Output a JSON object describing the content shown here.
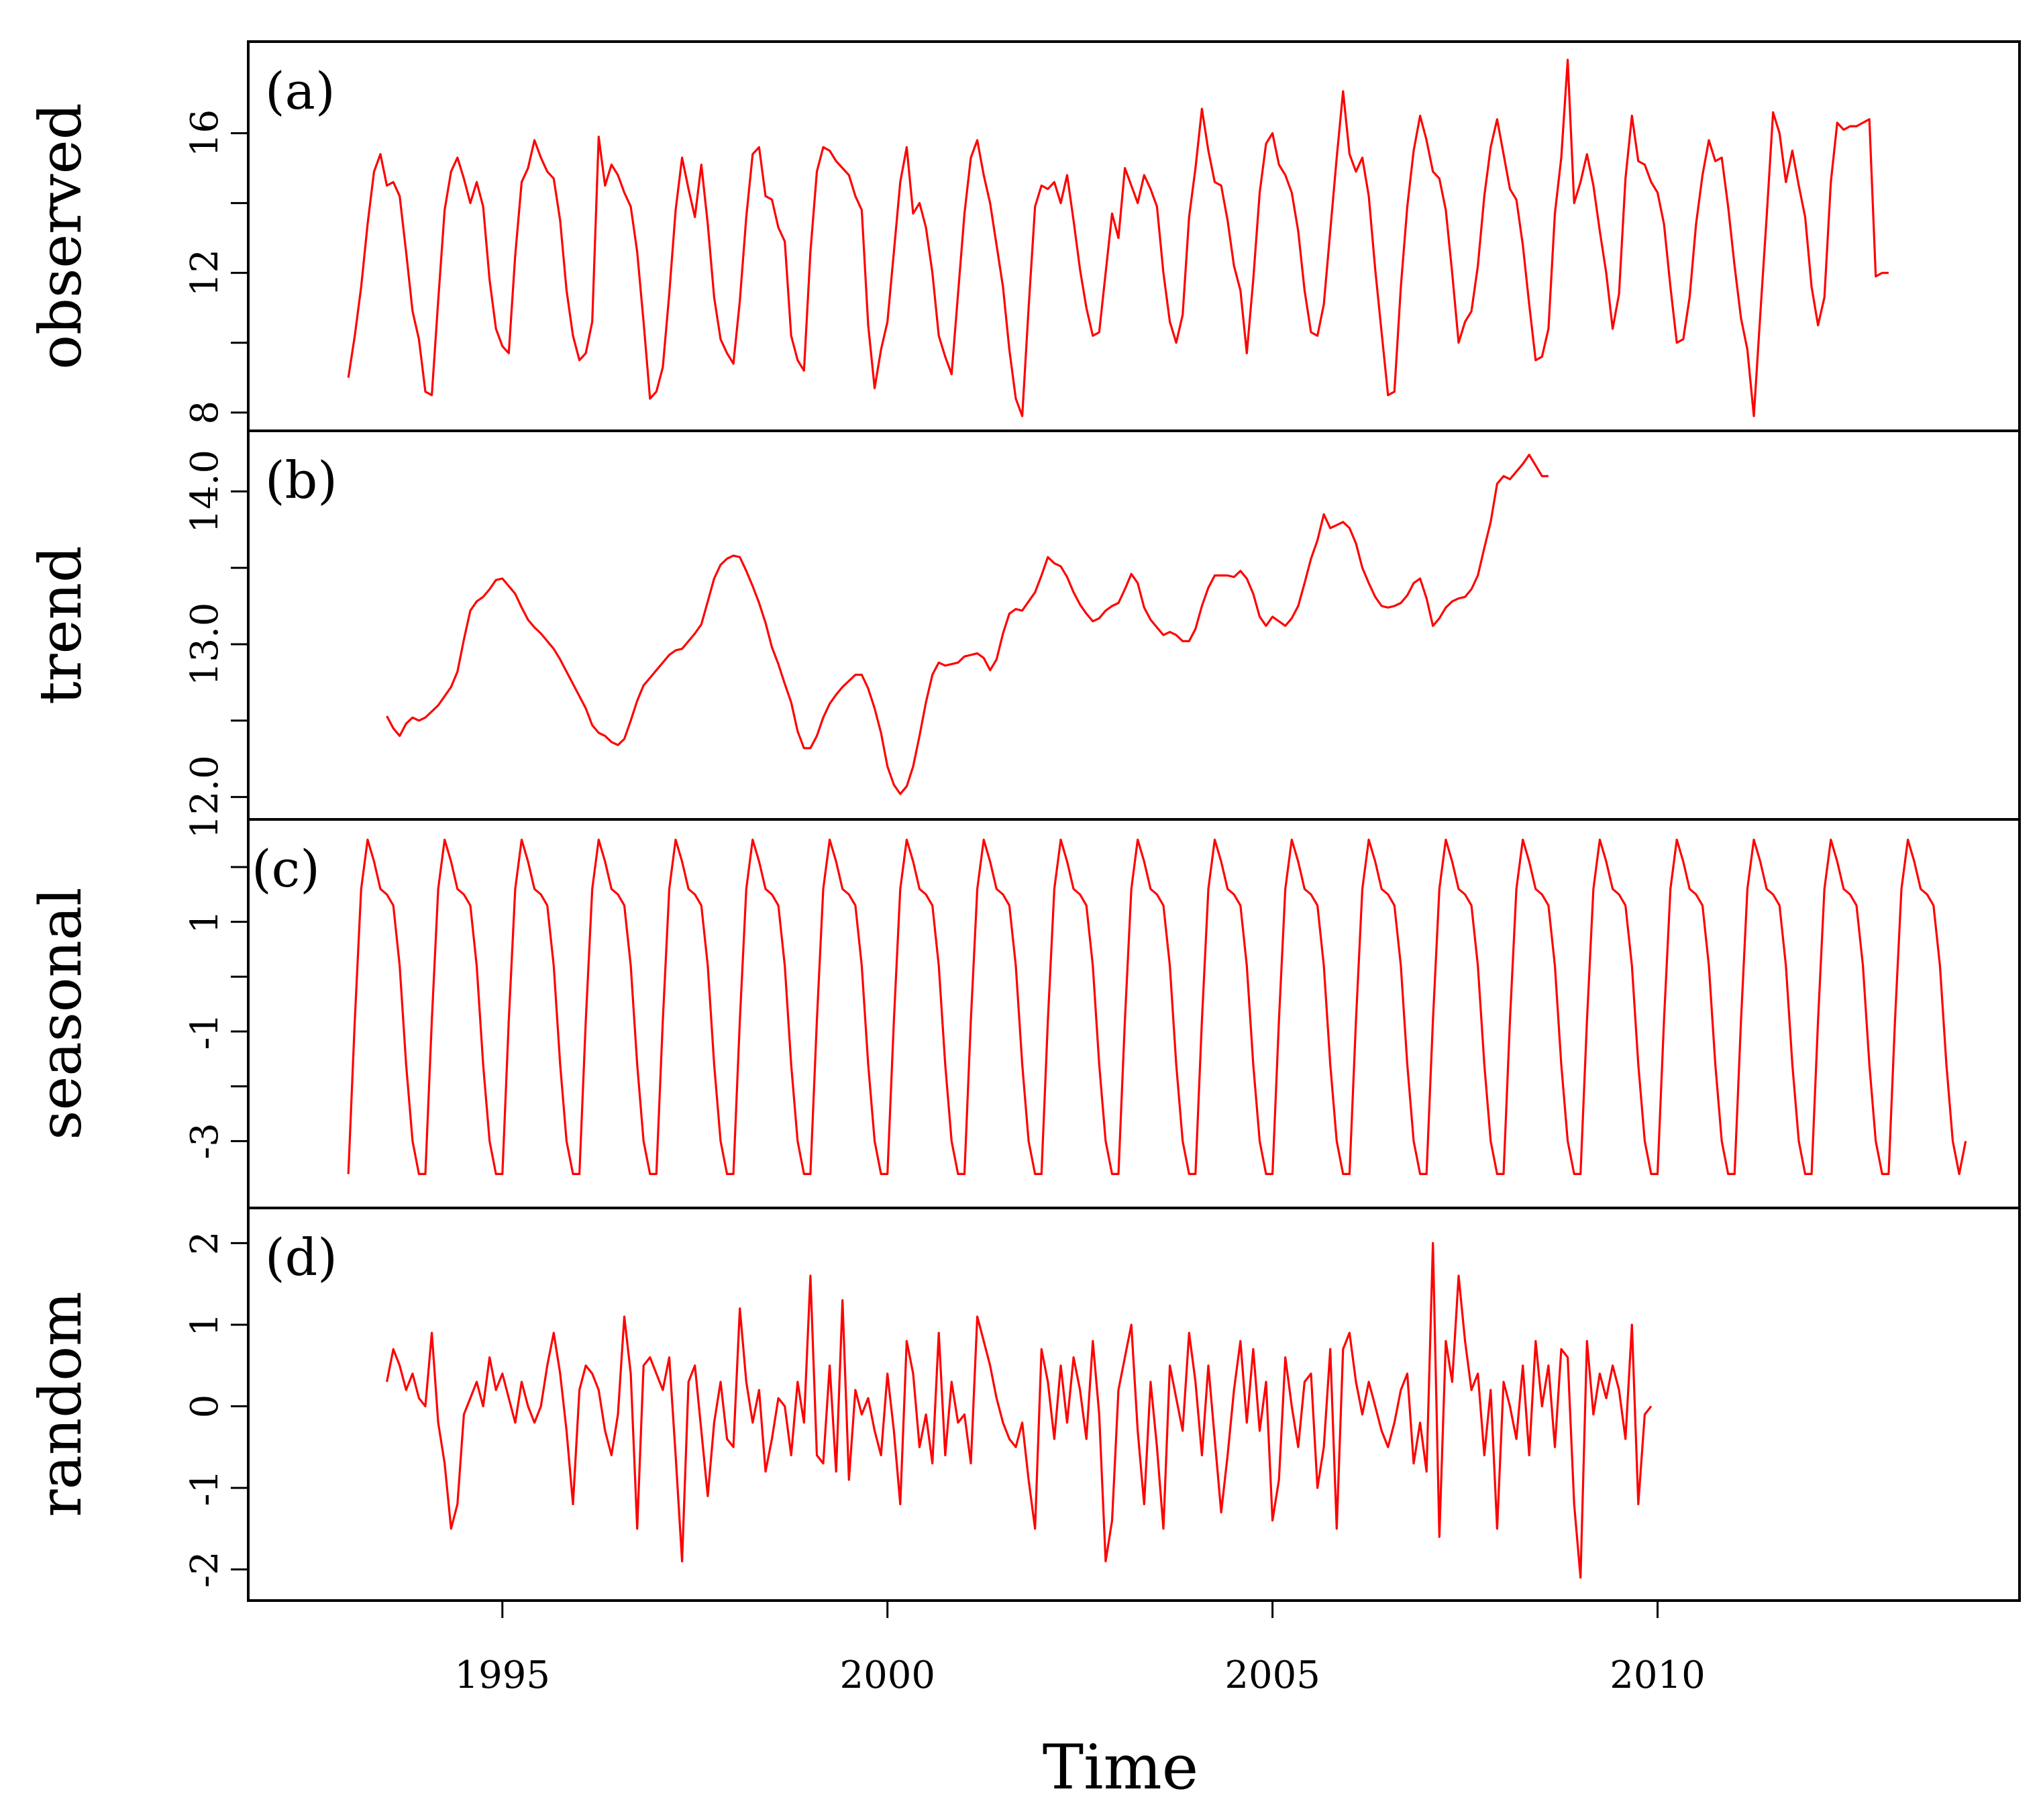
{
  "chart_data": {
    "type": "line",
    "title": "",
    "xlabel": "Time",
    "x_range": [
      1993,
      2014
    ],
    "xlim": [
      1991.7,
      2014.7
    ],
    "x_ticks": [
      1995,
      2000,
      2005,
      2010
    ],
    "x_tick_labels": [
      "1995",
      "2000",
      "2005",
      "2010"
    ],
    "color": "#ff0000",
    "panels": [
      {
        "tag": "(a)",
        "ylabel": "observed",
        "ylim": [
          7.9,
          18.2
        ],
        "y_ticks": [
          8,
          10,
          12,
          14,
          16
        ],
        "y_tick_labels": [
          "8",
          "",
          "12",
          "",
          "16"
        ],
        "start": 1993.0,
        "step": 0.0833333,
        "values": [
          9.0,
          10.2,
          11.6,
          13.4,
          14.9,
          15.4,
          14.5,
          14.6,
          14.2,
          12.6,
          10.9,
          10.1,
          8.6,
          8.5,
          11.2,
          13.8,
          14.9,
          15.3,
          14.7,
          14.0,
          14.6,
          13.9,
          11.8,
          10.4,
          9.9,
          9.7,
          12.5,
          14.6,
          15.0,
          15.8,
          15.3,
          14.9,
          14.7,
          13.5,
          11.5,
          10.2,
          9.5,
          9.7,
          10.6,
          15.9,
          14.5,
          15.1,
          14.8,
          14.3,
          13.9,
          12.6,
          10.6,
          8.4,
          8.6,
          9.3,
          11.4,
          13.8,
          15.3,
          14.4,
          13.6,
          15.1,
          13.4,
          11.3,
          10.1,
          9.7,
          9.4,
          11.2,
          13.6,
          15.4,
          15.6,
          14.2,
          14.1,
          13.3,
          12.9,
          10.2,
          9.5,
          9.2,
          12.6,
          14.9,
          15.6,
          15.5,
          15.2,
          15.0,
          14.8,
          14.2,
          13.8,
          10.5,
          8.7,
          9.8,
          10.6,
          12.6,
          14.6,
          15.6,
          13.7,
          14.0,
          13.3,
          12.0,
          10.2,
          9.6,
          9.1,
          11.4,
          13.7,
          15.3,
          15.8,
          14.8,
          14.0,
          12.8,
          11.6,
          9.8,
          8.4,
          7.9,
          11.0,
          13.9,
          14.5,
          14.4,
          14.6,
          14.0,
          14.8,
          13.5,
          12.1,
          11.0,
          10.2,
          10.3,
          12.0,
          13.7,
          13.0,
          15.0,
          14.5,
          14.0,
          14.8,
          14.4,
          13.9,
          12.0,
          10.6,
          10.0,
          10.8,
          13.6,
          15.0,
          16.7,
          15.5,
          14.6,
          14.5,
          13.5,
          12.2,
          11.5,
          9.7,
          11.8,
          14.3,
          15.7,
          16.0,
          15.1,
          14.8,
          14.3,
          13.2,
          11.5,
          10.3,
          10.2,
          11.1,
          13.2,
          15.3,
          17.2,
          15.4,
          14.9,
          15.3,
          14.2,
          12.1,
          10.3,
          8.5,
          8.6,
          11.6,
          13.9,
          15.5,
          16.5,
          15.8,
          14.9,
          14.7,
          13.8,
          12.0,
          10.0,
          10.6,
          10.9,
          12.2,
          14.2,
          15.6,
          16.4,
          15.4,
          14.4,
          14.1,
          12.8,
          11.1,
          9.5,
          9.6,
          10.4,
          13.7,
          15.3,
          18.1,
          14.0,
          14.6,
          15.4,
          14.5,
          13.2,
          12.0,
          10.4,
          11.4,
          14.7,
          16.5,
          15.2,
          15.1,
          14.6,
          14.3,
          13.4,
          11.6,
          10.0,
          10.1,
          11.3,
          13.4,
          14.8,
          15.8,
          15.2,
          15.3,
          13.9,
          12.2,
          10.7,
          9.8,
          7.9,
          10.8,
          13.6,
          16.6,
          16.0,
          14.6,
          15.5,
          14.5,
          13.6,
          11.6,
          10.5,
          11.3,
          14.6,
          16.3,
          16.1,
          16.2,
          16.2,
          16.3,
          16.4,
          11.9,
          12.0,
          12.0
        ]
      },
      {
        "tag": "(b)",
        "ylabel": "trend",
        "ylim": [
          11.95,
          14.3
        ],
        "y_ticks": [
          12.0,
          12.5,
          13.0,
          13.5,
          14.0
        ],
        "y_tick_labels": [
          "12.0",
          "",
          "13.0",
          "",
          "14.0"
        ],
        "start": 1993.5,
        "step": 0.0833333,
        "values": [
          12.53,
          12.45,
          12.4,
          12.48,
          12.52,
          12.5,
          12.52,
          12.56,
          12.6,
          12.66,
          12.72,
          12.82,
          13.03,
          13.22,
          13.28,
          13.31,
          13.36,
          13.42,
          13.43,
          13.38,
          13.33,
          13.24,
          13.16,
          13.11,
          13.07,
          13.02,
          12.97,
          12.9,
          12.82,
          12.74,
          12.66,
          12.58,
          12.47,
          12.42,
          12.4,
          12.36,
          12.34,
          12.38,
          12.5,
          12.63,
          12.73,
          12.78,
          12.83,
          12.88,
          12.93,
          12.96,
          12.97,
          13.02,
          13.07,
          13.13,
          13.28,
          13.43,
          13.52,
          13.56,
          13.58,
          13.57,
          13.48,
          13.38,
          13.27,
          13.14,
          12.98,
          12.87,
          12.74,
          12.62,
          12.43,
          12.32,
          12.32,
          12.4,
          12.52,
          12.61,
          12.67,
          12.72,
          12.76,
          12.8,
          12.8,
          12.71,
          12.58,
          12.42,
          12.2,
          12.08,
          12.02,
          12.07,
          12.2,
          12.4,
          12.62,
          12.8,
          12.88,
          12.86,
          12.87,
          12.88,
          12.92,
          12.93,
          12.94,
          12.91,
          12.83,
          12.9,
          13.07,
          13.2,
          13.23,
          13.22,
          13.28,
          13.34,
          13.45,
          13.57,
          13.53,
          13.51,
          13.44,
          13.34,
          13.26,
          13.2,
          13.15,
          13.17,
          13.22,
          13.25,
          13.27,
          13.36,
          13.46,
          13.4,
          13.24,
          13.16,
          13.11,
          13.06,
          13.08,
          13.06,
          13.02,
          13.02,
          13.1,
          13.25,
          13.37,
          13.45,
          13.45,
          13.45,
          13.44,
          13.48,
          13.43,
          13.33,
          13.18,
          13.12,
          13.18,
          13.15,
          13.12,
          13.17,
          13.25,
          13.4,
          13.56,
          13.68,
          13.85,
          13.76,
          13.78,
          13.8,
          13.76,
          13.66,
          13.5,
          13.4,
          13.31,
          13.25,
          13.24,
          13.25,
          13.27,
          13.32,
          13.4,
          13.43,
          13.3,
          13.12,
          13.17,
          13.24,
          13.28,
          13.3,
          13.31,
          13.36,
          13.45,
          13.63,
          13.8,
          14.05,
          14.1,
          14.08,
          14.13,
          14.18,
          14.24,
          14.17,
          14.1,
          14.1
        ]
      },
      {
        "tag": "(c)",
        "ylabel": "seasonal",
        "ylim": [
          -3.95,
          2.6
        ],
        "y_ticks": [
          -3,
          -2,
          -1,
          0,
          1,
          2
        ],
        "y_tick_labels": [
          "-3",
          "",
          "-1",
          "",
          "1",
          ""
        ],
        "start": 1993.0,
        "step": 0.0833333,
        "pattern": [
          -3.6,
          -0.8,
          1.6,
          2.5,
          2.1,
          1.6,
          1.5,
          1.3,
          0.2,
          -1.6,
          -3.0,
          -3.6
        ],
        "cycles": 21,
        "tail": [
          -3.0
        ],
        "values": []
      },
      {
        "tag": "(d)",
        "ylabel": "random",
        "ylim": [
          -2.2,
          2.25
        ],
        "y_ticks": [
          -2,
          -1,
          0,
          1,
          2
        ],
        "y_tick_labels": [
          "-2",
          "-1",
          "0",
          "1",
          "2"
        ],
        "start": 1993.5,
        "step": 0.0833333,
        "values": [
          0.3,
          0.7,
          0.5,
          0.2,
          0.4,
          0.1,
          0.0,
          0.9,
          -0.2,
          -0.7,
          -1.5,
          -1.2,
          -0.1,
          0.1,
          0.3,
          0.0,
          0.6,
          0.2,
          0.4,
          0.1,
          -0.2,
          0.3,
          0.0,
          -0.2,
          0.0,
          0.5,
          0.9,
          0.4,
          -0.3,
          -1.2,
          0.2,
          0.5,
          0.4,
          0.2,
          -0.3,
          -0.6,
          -0.1,
          1.1,
          0.4,
          -1.5,
          0.5,
          0.6,
          0.4,
          0.2,
          0.6,
          -0.6,
          -1.9,
          0.3,
          0.5,
          -0.3,
          -1.1,
          -0.2,
          0.3,
          -0.4,
          -0.5,
          1.2,
          0.3,
          -0.2,
          0.2,
          -0.8,
          -0.4,
          0.1,
          0.0,
          -0.6,
          0.3,
          -0.2,
          1.6,
          -0.6,
          -0.7,
          0.5,
          -0.8,
          1.3,
          -0.9,
          0.2,
          -0.1,
          0.1,
          -0.3,
          -0.6,
          0.4,
          -0.3,
          -1.2,
          0.8,
          0.4,
          -0.5,
          -0.1,
          -0.7,
          0.9,
          -0.6,
          0.3,
          -0.2,
          -0.1,
          -0.7,
          1.1,
          0.8,
          0.5,
          0.1,
          -0.2,
          -0.4,
          -0.5,
          -0.2,
          -0.9,
          -1.5,
          0.7,
          0.3,
          -0.4,
          0.5,
          -0.2,
          0.6,
          0.2,
          -0.4,
          0.8,
          -0.1,
          -1.9,
          -1.4,
          0.2,
          0.6,
          1.0,
          -0.3,
          -1.2,
          0.3,
          -0.5,
          -1.5,
          0.5,
          0.1,
          -0.3,
          0.9,
          0.3,
          -0.6,
          0.5,
          -0.4,
          -1.3,
          -0.6,
          0.2,
          0.8,
          -0.2,
          0.7,
          -0.3,
          0.3,
          -1.4,
          -0.9,
          0.6,
          0.0,
          -0.5,
          0.3,
          0.4,
          -1.0,
          -0.5,
          0.7,
          -1.5,
          0.7,
          0.9,
          0.3,
          -0.1,
          0.3,
          0.0,
          -0.3,
          -0.5,
          -0.2,
          0.2,
          0.4,
          -0.7,
          -0.2,
          -0.8,
          2.0,
          -1.6,
          0.8,
          0.3,
          1.6,
          0.8,
          0.2,
          0.4,
          -0.6,
          0.2,
          -1.5,
          0.3,
          0.0,
          -0.4,
          0.5,
          -0.6,
          0.8,
          0.0,
          0.5,
          -0.5,
          0.7,
          0.6,
          -1.2,
          -2.1,
          0.8,
          -0.1,
          0.4,
          0.1,
          0.5,
          0.2,
          -0.4,
          1.0,
          -1.2,
          -0.1,
          0.0
        ]
      }
    ]
  }
}
